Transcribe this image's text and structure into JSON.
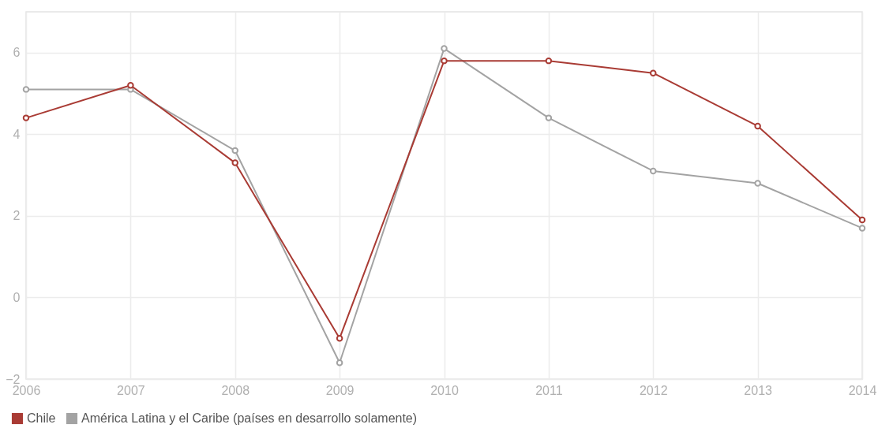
{
  "chart_data": {
    "type": "line",
    "x": [
      2006,
      2007,
      2008,
      2009,
      2010,
      2011,
      2012,
      2013,
      2014
    ],
    "series": [
      {
        "name": "Chile",
        "color": "#a93b34",
        "values": [
          4.4,
          5.2,
          3.3,
          -1.0,
          5.8,
          5.8,
          5.5,
          4.2,
          1.9
        ]
      },
      {
        "name": "América Latina y el Caribe (países en desarrollo solamente)",
        "color": "#a3a3a3",
        "values": [
          5.1,
          5.1,
          3.6,
          -1.6,
          6.1,
          4.4,
          3.1,
          2.8,
          1.7
        ]
      }
    ],
    "xlim": [
      2006,
      2014
    ],
    "xticks": [
      2006,
      2007,
      2008,
      2009,
      2010,
      2011,
      2012,
      2013,
      2014
    ],
    "ylim": [
      -2,
      7
    ],
    "yticks": [
      -2,
      0,
      2,
      4,
      6
    ],
    "grid": true,
    "legend": "bottom",
    "marker": "circle",
    "line_style": "solid"
  }
}
